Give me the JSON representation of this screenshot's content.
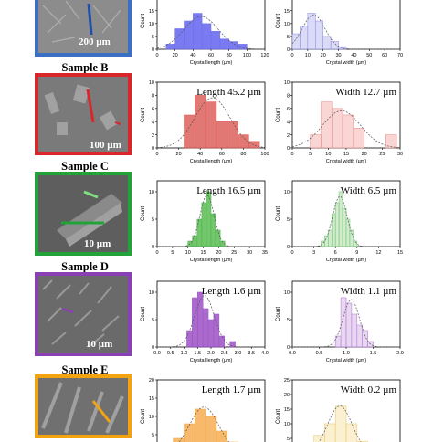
{
  "samples": [
    {
      "id": "A",
      "title": "",
      "scale": "200 µm",
      "frame_color": "#3a6fc4",
      "bg": "#8c8c8c",
      "arrow_color": "#1f4fa8"
    },
    {
      "id": "B",
      "title": "Sample B",
      "scale": "100 µm",
      "frame_color": "#d9262b",
      "bg": "#7a7a7a",
      "arrow_color": "#d9262b"
    },
    {
      "id": "C",
      "title": "Sample C",
      "scale": "10 µm",
      "frame_color": "#22a33a",
      "bg": "#5e5e5e",
      "arrow_color": "#22a33a"
    },
    {
      "id": "D",
      "title": "Sample D",
      "scale": "10 µm",
      "frame_color": "#8a3fb5",
      "bg": "#6a6a6a",
      "arrow_color": "#8a3fb5"
    },
    {
      "id": "E",
      "title": "Sample E",
      "scale": "",
      "frame_color": "#f2a30f",
      "bg": "#707070",
      "arrow_color": "#f2a30f"
    }
  ],
  "chart_data": [
    {
      "id": "A-length",
      "type": "bar",
      "title": "",
      "xlabel": "Crystal length (µm)",
      "ylabel": "Count",
      "xlim": [
        0,
        120
      ],
      "xticks": [
        0,
        20,
        40,
        60,
        80,
        100,
        120
      ],
      "ylim": [
        0,
        22
      ],
      "bin_edges": [
        10,
        20,
        30,
        40,
        50,
        60,
        70,
        80,
        90,
        100
      ],
      "values": [
        2,
        8,
        11,
        14,
        10,
        7,
        4,
        3,
        2
      ],
      "color": "#6c6cf0",
      "fill": "#6c6cf0"
    },
    {
      "id": "A-width",
      "type": "bar",
      "title": "",
      "xlabel": "Crystal width (µm)",
      "ylabel": "Count",
      "xlim": [
        0,
        70
      ],
      "xticks": [
        0,
        10,
        20,
        30,
        40,
        50,
        60,
        70
      ],
      "ylim": [
        0,
        22
      ],
      "bin_edges": [
        0,
        5,
        10,
        15,
        20,
        25,
        30,
        35
      ],
      "values": [
        6,
        9,
        14,
        11,
        5,
        3,
        1
      ],
      "color": "#8a8ae8",
      "fill": "#d8d8f8"
    },
    {
      "id": "B-length",
      "type": "bar",
      "title": "Length 45.2 µm",
      "xlabel": "Crystal length (µm)",
      "ylabel": "Count",
      "xlim": [
        0,
        100
      ],
      "xticks": [
        0,
        20,
        40,
        60,
        80,
        100
      ],
      "ylim": [
        0,
        10
      ],
      "bin_edges": [
        25,
        35,
        45,
        55,
        65,
        75,
        85,
        95
      ],
      "values": [
        5,
        8,
        7,
        4,
        4,
        2,
        1
      ],
      "color": "#d9534f",
      "fill": "#de6a66"
    },
    {
      "id": "B-width",
      "type": "bar",
      "title": "Width 12.7 µm",
      "xlabel": "Crystal width (µm)",
      "ylabel": "Count",
      "xlim": [
        0,
        30
      ],
      "xticks": [
        0,
        5,
        10,
        15,
        20,
        25,
        30
      ],
      "ylim": [
        0,
        10
      ],
      "bin_edges": [
        5,
        8,
        11,
        14,
        17,
        20,
        23,
        26,
        29
      ],
      "values": [
        2,
        7,
        6,
        5,
        3,
        0,
        0,
        2
      ],
      "color": "#e88a88",
      "fill": "#f9d2d0"
    },
    {
      "id": "C-length",
      "type": "bar",
      "title": "Length 16.5 µm",
      "xlabel": "Crystal length (µm)",
      "ylabel": "Count",
      "xlim": [
        0,
        35
      ],
      "xticks": [
        0,
        5,
        10,
        15,
        20,
        25,
        30,
        35
      ],
      "ylim": [
        0,
        12
      ],
      "bin_edges": [
        10,
        11.5,
        13,
        14.5,
        16,
        17.5,
        19,
        20.5,
        22
      ],
      "values": [
        1,
        2,
        5,
        8,
        10,
        6,
        3,
        1
      ],
      "color": "#4caf50",
      "fill": "#62c25a"
    },
    {
      "id": "C-width",
      "type": "bar",
      "title": "Width 6.5 µm",
      "xlabel": "Crystal width (µm)",
      "ylabel": "Count",
      "xlim": [
        0,
        15
      ],
      "xticks": [
        0,
        3,
        6,
        9,
        12,
        15
      ],
      "ylim": [
        0,
        12
      ],
      "bin_edges": [
        4,
        4.5,
        5,
        5.5,
        6,
        6.5,
        7,
        7.5,
        8,
        8.5,
        9
      ],
      "values": [
        1,
        2,
        3,
        6,
        8,
        10,
        7,
        5,
        3,
        1
      ],
      "color": "#6cc46c",
      "fill": "#cdebc8"
    },
    {
      "id": "D-length",
      "type": "bar",
      "title": "Length 1.6 µm",
      "xlabel": "Crystal length (µm)",
      "ylabel": "Count",
      "xlim": [
        0,
        4
      ],
      "xticks": [
        0.0,
        0.5,
        1.0,
        1.5,
        2.0,
        2.5,
        3.0,
        3.5,
        4.0
      ],
      "xtick_labels": [
        "0.0",
        "0.5",
        "1.0",
        "1.5",
        "2.0",
        "2.5",
        "3.0",
        "3.5",
        "4.0"
      ],
      "ylim": [
        0,
        12
      ],
      "bin_edges": [
        1.1,
        1.3,
        1.5,
        1.7,
        1.9,
        2.1,
        2.3,
        2.5,
        2.7,
        2.9
      ],
      "values": [
        3,
        9,
        10,
        7,
        5,
        6,
        2,
        0,
        1
      ],
      "color": "#9c4dc4",
      "fill": "#a35bc9"
    },
    {
      "id": "D-width",
      "type": "bar",
      "title": "Width 1.1 µm",
      "xlabel": "Crystal width (µm)",
      "ylabel": "Count",
      "xlim": [
        0,
        2
      ],
      "xticks": [
        0.0,
        0.5,
        1.0,
        1.5,
        2.0
      ],
      "xtick_labels": [
        "0.0",
        "0.5",
        "1.0",
        "1.5",
        "2.0"
      ],
      "ylim": [
        0,
        12
      ],
      "bin_edges": [
        0.8,
        0.9,
        1.0,
        1.1,
        1.2,
        1.3,
        1.4,
        1.5
      ],
      "values": [
        2,
        9,
        8,
        6,
        4,
        3,
        1
      ],
      "color": "#b07ad0",
      "fill": "#e7d2f1"
    },
    {
      "id": "E-length",
      "type": "bar",
      "title": "Length 1.7 µm",
      "xlabel": "",
      "ylabel": "Count",
      "xlim": [
        0,
        4
      ],
      "xticks": [],
      "ylim": [
        0,
        20
      ],
      "yticks": [
        0,
        5,
        10,
        15,
        20
      ],
      "bin_edges": [
        0.6,
        1.0,
        1.4,
        1.8,
        2.2,
        2.6,
        3.0
      ],
      "values": [
        4,
        8,
        12,
        10,
        6,
        3
      ],
      "color": "#f3a442",
      "fill": "#f7b35e",
      "clip_bottom": true
    },
    {
      "id": "E-width",
      "type": "bar",
      "title": "Width 0.2 µm",
      "xlabel": "",
      "ylabel": "Count",
      "xlim": [
        0,
        0.5
      ],
      "xticks": [],
      "ylim": [
        0,
        25
      ],
      "yticks": [
        0,
        5,
        10,
        15,
        20,
        25
      ],
      "bin_edges": [
        0.1,
        0.15,
        0.2,
        0.25,
        0.3,
        0.35
      ],
      "values": [
        6,
        10,
        16,
        10,
        4
      ],
      "color": "#e8c86a",
      "fill": "#fbefcc",
      "clip_bottom": true
    }
  ]
}
